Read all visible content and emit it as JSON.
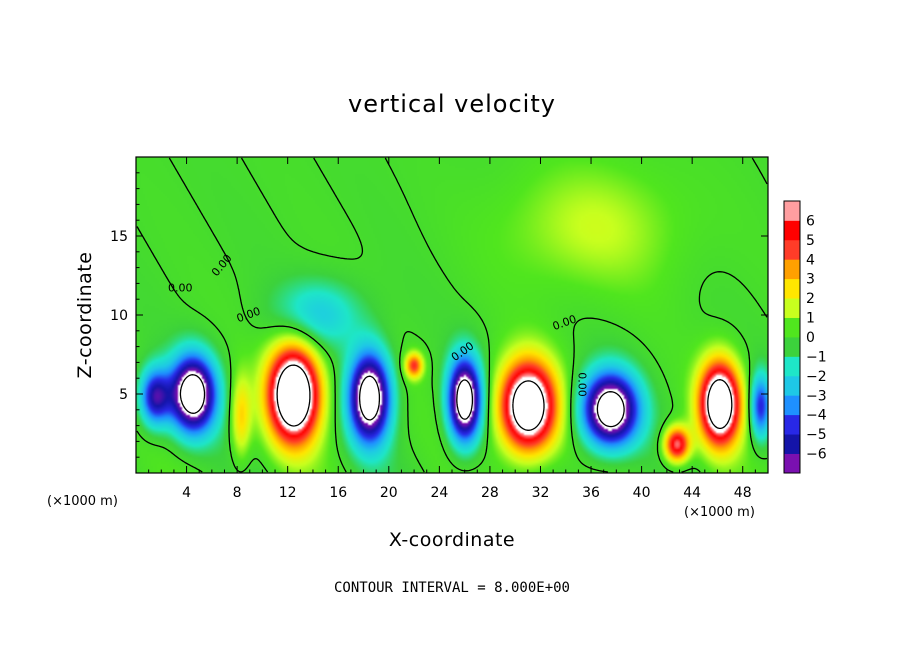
{
  "chart_data": {
    "type": "heatmap",
    "title": "vertical velocity",
    "xlabel": "X-coordinate",
    "ylabel": "Z-coordinate",
    "x_unit_label": "(×1000 m)",
    "y_unit_label": "(×1000 m)",
    "xlim": [
      0,
      50
    ],
    "ylim": [
      0,
      20
    ],
    "x_ticks": [
      4,
      8,
      12,
      16,
      20,
      24,
      28,
      32,
      36,
      40,
      44,
      48
    ],
    "y_ticks": [
      5,
      10,
      15
    ],
    "colorbar": {
      "levels": [
        -6,
        -5,
        -4,
        -3,
        -2,
        -1,
        0,
        1,
        2,
        3,
        4,
        5,
        6
      ],
      "colors": [
        "#7a10b0",
        "#1414a8",
        "#2828e6",
        "#1e90ff",
        "#1ec8e6",
        "#1ee6c8",
        "#3cd23c",
        "#50e61e",
        "#c8ff1e",
        "#ffe600",
        "#ffa000",
        "#ff3c28",
        "#ff0000",
        "#ff9ea0"
      ],
      "saturation_color_high": "#ffffff",
      "saturation_color_low": "#ffffff"
    },
    "contour_labels": [
      "0.00",
      "0.00",
      "0.00",
      "0.00",
      "0.00",
      "0.00"
    ],
    "contour_interval_text": "CONTOUR INTERVAL = 8.000E+00",
    "features": [
      {
        "kind": "updraft",
        "x": 12.5,
        "z": 5.0,
        "sx": 2.0,
        "sz": 3.0,
        "w": 12
      },
      {
        "kind": "downdraft",
        "x": 4.5,
        "z": 5.0,
        "sx": 1.8,
        "sz": 2.4,
        "w": -10
      },
      {
        "kind": "downdraft",
        "x": 18.5,
        "z": 4.8,
        "sx": 1.6,
        "sz": 2.8,
        "w": -10
      },
      {
        "kind": "updraft",
        "x": 22.0,
        "z": 6.8,
        "sx": 0.7,
        "sz": 0.8,
        "w": 5
      },
      {
        "kind": "downdraft",
        "x": 26.0,
        "z": 4.6,
        "sx": 1.3,
        "sz": 2.6,
        "w": -10
      },
      {
        "kind": "updraft",
        "x": 31.0,
        "z": 4.2,
        "sx": 2.2,
        "sz": 2.8,
        "w": 11
      },
      {
        "kind": "downdraft",
        "x": 37.5,
        "z": 4.0,
        "sx": 2.2,
        "sz": 2.3,
        "w": -10
      },
      {
        "kind": "updraft",
        "x": 42.8,
        "z": 1.8,
        "sx": 1.0,
        "sz": 1.1,
        "w": 7
      },
      {
        "kind": "updraft",
        "x": 46.2,
        "z": 4.4,
        "sx": 1.6,
        "sz": 2.6,
        "w": 11
      },
      {
        "kind": "downdraft",
        "x": 49.4,
        "z": 4.2,
        "sx": 0.8,
        "sz": 2.0,
        "w": -5
      },
      {
        "kind": "updraft",
        "x": 8.3,
        "z": 3.5,
        "sx": 0.8,
        "sz": 2.6,
        "w": 3
      },
      {
        "kind": "downdraft",
        "x": 14.5,
        "z": 10.0,
        "sx": 3.5,
        "sz": 2.2,
        "w": -2.5
      },
      {
        "kind": "downdraft",
        "x": 1.5,
        "z": 4.8,
        "sx": 1.2,
        "sz": 1.8,
        "w": -6
      },
      {
        "kind": "updraft",
        "x": 36.0,
        "z": 15.5,
        "sx": 7.0,
        "sz": 4.0,
        "w": 1.6
      }
    ]
  }
}
